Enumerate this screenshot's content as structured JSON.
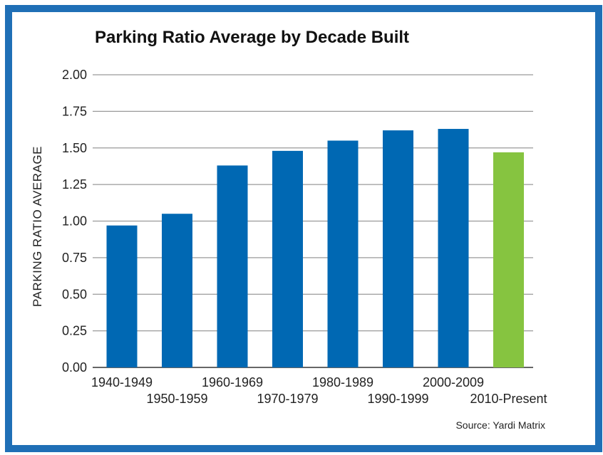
{
  "chart_data": {
    "type": "bar",
    "title": "Parking Ratio Average by Decade Built",
    "ylabel": "PARKING RATIO AVERAGE",
    "xlabel": "",
    "categories": [
      "1940-1949",
      "1950-1959",
      "1960-1969",
      "1970-1979",
      "1980-1989",
      "1990-1999",
      "2000-2009",
      "2010-Present"
    ],
    "values": [
      0.97,
      1.05,
      1.38,
      1.48,
      1.55,
      1.62,
      1.63,
      1.47
    ],
    "ylim": [
      0,
      2.0
    ],
    "yticks": [
      "0.00",
      "0.25",
      "0.50",
      "0.75",
      "1.00",
      "1.25",
      "1.50",
      "1.75",
      "2.00"
    ],
    "grid": true,
    "bar_colors": [
      "#0068b3",
      "#0068b3",
      "#0068b3",
      "#0068b3",
      "#0068b3",
      "#0068b3",
      "#0068b3",
      "#86c440"
    ],
    "source": "Source: Yardi Matrix"
  },
  "colors": {
    "frame": "#1f6fb6",
    "bar": "#0068b3",
    "highlight": "#86c440"
  }
}
